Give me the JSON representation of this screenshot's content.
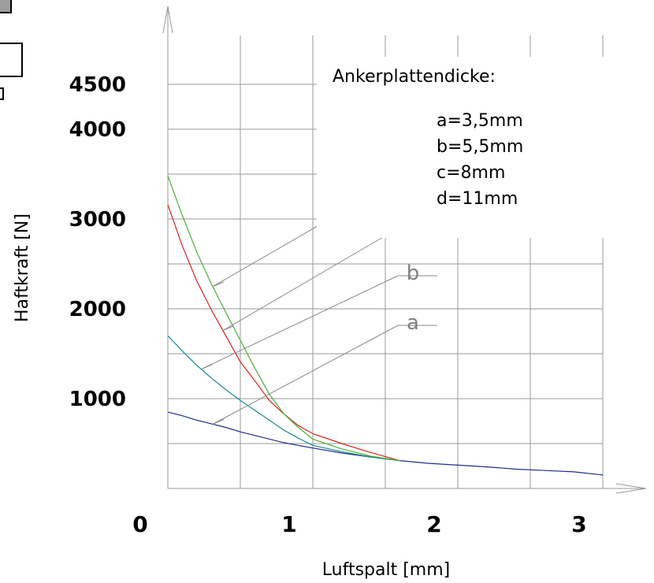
{
  "chart_data": {
    "type": "line",
    "xlabel": "Luftspalt [mm]",
    "ylabel": "Haftkraft [N]",
    "xlim": [
      0,
      3
    ],
    "ylim": [
      0,
      5000
    ],
    "x_ticks": [
      "0",
      "1",
      "2",
      "3"
    ],
    "y_ticks": [
      "1000",
      "2000",
      "3000",
      "4000",
      "4500"
    ],
    "y_tick_values": [
      1000,
      2000,
      3000,
      4000,
      4500
    ],
    "grid": true,
    "legend": {
      "title": "Ankerplattendicke:",
      "entries": [
        "a=3,5mm",
        "b=5,5mm",
        "c=8mm",
        "d=11mm"
      ],
      "placement": "top-right"
    },
    "series": [
      {
        "name": "a",
        "color": "#1f2d8a",
        "x": [
          0,
          0.1,
          0.2,
          0.3,
          0.4,
          0.5,
          0.6,
          0.8,
          1.0,
          1.2,
          1.4,
          1.6,
          1.8,
          2.0,
          2.2,
          2.4,
          2.6,
          2.8,
          3.0
        ],
        "y": [
          850,
          810,
          760,
          720,
          680,
          630,
          590,
          510,
          450,
          395,
          350,
          310,
          280,
          260,
          240,
          215,
          200,
          185,
          150
        ]
      },
      {
        "name": "b",
        "color": "#1a8a8a",
        "x": [
          0,
          0.1,
          0.2,
          0.3,
          0.4,
          0.5,
          0.6,
          0.7,
          0.8,
          0.9,
          1.0,
          1.2,
          1.4,
          1.6
        ],
        "y": [
          1700,
          1530,
          1370,
          1230,
          1100,
          980,
          870,
          760,
          650,
          560,
          480,
          410,
          350,
          310
        ]
      },
      {
        "name": "c",
        "color": "#e02020",
        "x": [
          0,
          0.1,
          0.2,
          0.3,
          0.4,
          0.5,
          0.6,
          0.7,
          0.8,
          0.9,
          1.0,
          1.2,
          1.4,
          1.6
        ],
        "y": [
          3160,
          2700,
          2310,
          1990,
          1700,
          1410,
          1200,
          980,
          830,
          700,
          610,
          500,
          400,
          310
        ]
      },
      {
        "name": "d",
        "color": "#4caf38",
        "x": [
          0,
          0.1,
          0.2,
          0.3,
          0.4,
          0.5,
          0.6,
          0.7,
          0.8,
          0.9,
          1.0,
          1.2,
          1.4,
          1.6
        ],
        "y": [
          3480,
          3040,
          2630,
          2280,
          1960,
          1650,
          1340,
          1050,
          830,
          680,
          550,
          440,
          360,
          310
        ]
      }
    ]
  }
}
